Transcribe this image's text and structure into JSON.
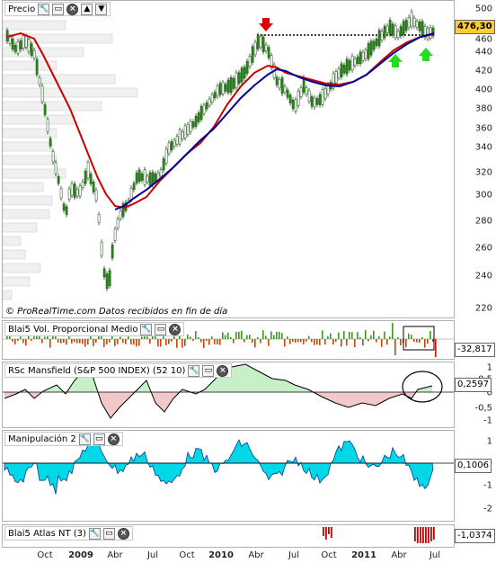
{
  "price_panel": {
    "title": "Precio",
    "last_value": "476,30",
    "footer": "© ProRealTime.com  Datos recibidos en fin de día",
    "y_ticks": [
      "500",
      "480",
      "460",
      "440",
      "420",
      "400",
      "380",
      "360",
      "340",
      "320",
      "300",
      "280",
      "260",
      "240",
      "220"
    ]
  },
  "vol_panel": {
    "title": "Blai5 Vol. Proporcional Medio",
    "last_value": "-32,817"
  },
  "rsc_panel": {
    "title": "RSc Mansfield (S&P 500 INDEX) (52 10)",
    "last_value": "0,2597",
    "y_ticks": [
      "1",
      "0,5",
      "0",
      "-0,5",
      "-1"
    ]
  },
  "manip_panel": {
    "title": "Manipulación 2",
    "last_value": "0,1006",
    "y_ticks": [
      "1",
      "0",
      "-1",
      "-2"
    ]
  },
  "atlas_panel": {
    "title": "Blai5 Atlas NT (3)",
    "last_value": "-1,0374"
  },
  "x_axis": [
    {
      "label": "Oct",
      "year": false
    },
    {
      "label": "2009",
      "year": true
    },
    {
      "label": "Abr",
      "year": false
    },
    {
      "label": "Jul",
      "year": false
    },
    {
      "label": "Oct",
      "year": false
    },
    {
      "label": "2010",
      "year": true
    },
    {
      "label": "Abr",
      "year": false
    },
    {
      "label": "Jul",
      "year": false
    },
    {
      "label": "Oct",
      "year": false
    },
    {
      "label": "2011",
      "year": true
    },
    {
      "label": "Abr",
      "year": false
    },
    {
      "label": "Jul",
      "year": false
    }
  ],
  "colors": {
    "up_candle": "#2a8a1a",
    "ma_fast": "#cc0000",
    "ma_slow": "#000099",
    "rsc_pos": "#c8f0c8",
    "rsc_neg": "#f3c8c8",
    "manip_fill": "#00d8e8",
    "badge_last": "#ffcc33"
  },
  "icons": [
    "wrench-icon",
    "window-icon",
    "close-icon",
    "up-icon",
    "down-icon",
    "red-arrow-down-icon",
    "green-arrow-up-icon"
  ]
}
